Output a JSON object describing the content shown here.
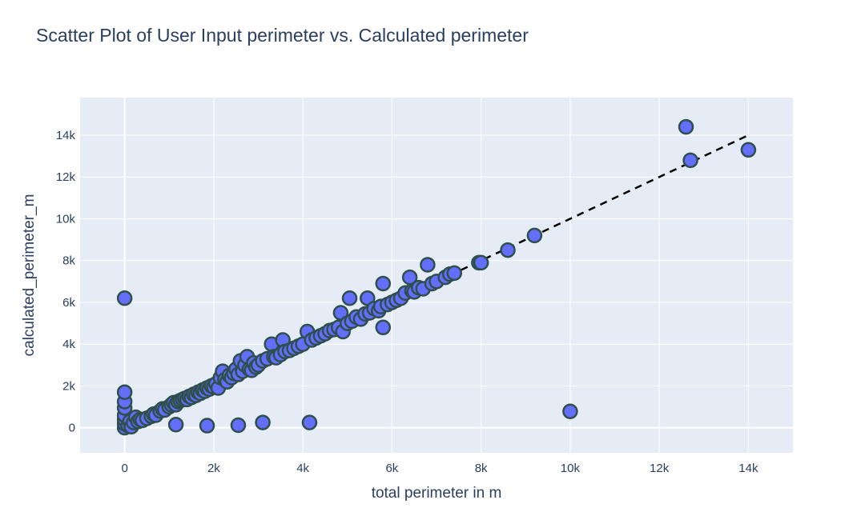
{
  "chart_data": {
    "type": "scatter",
    "title": "Scatter Plot of User Input perimeter vs. Calculated perimeter",
    "xlabel": "total perimeter in m",
    "ylabel": "calculated_perimeter_m",
    "xlim": [
      -1000,
      15000
    ],
    "ylim": [
      -1200,
      15800
    ],
    "x_ticks": [
      {
        "value": 0,
        "label": "0"
      },
      {
        "value": 2000,
        "label": "2k"
      },
      {
        "value": 4000,
        "label": "4k"
      },
      {
        "value": 6000,
        "label": "6k"
      },
      {
        "value": 8000,
        "label": "8k"
      },
      {
        "value": 10000,
        "label": "10k"
      },
      {
        "value": 12000,
        "label": "12k"
      },
      {
        "value": 14000,
        "label": "14k"
      }
    ],
    "y_ticks": [
      {
        "value": 0,
        "label": "0"
      },
      {
        "value": 2000,
        "label": "2k"
      },
      {
        "value": 4000,
        "label": "4k"
      },
      {
        "value": 6000,
        "label": "6k"
      },
      {
        "value": 8000,
        "label": "8k"
      },
      {
        "value": 10000,
        "label": "10k"
      },
      {
        "value": 12000,
        "label": "12k"
      },
      {
        "value": 14000,
        "label": "14k"
      }
    ],
    "grid": true,
    "legend": "none",
    "colors": {
      "plot_bg": "#E5ECF6",
      "grid": "#ffffff",
      "marker_fill": "#636EFA",
      "marker_line": "#2F4F4F",
      "text": "#2a3f5f",
      "reference_line": "#000000"
    },
    "reference_line": {
      "style": "dashed",
      "x": [
        0,
        14000
      ],
      "y": [
        0,
        14000
      ]
    },
    "points": [
      {
        "x": 0,
        "y": 0
      },
      {
        "x": 0,
        "y": 200
      },
      {
        "x": 0,
        "y": 400
      },
      {
        "x": 0,
        "y": 600
      },
      {
        "x": 0,
        "y": 950
      },
      {
        "x": 0,
        "y": 1250
      },
      {
        "x": 0,
        "y": 1700
      },
      {
        "x": 0,
        "y": 6200
      },
      {
        "x": 80,
        "y": 100
      },
      {
        "x": 120,
        "y": 300
      },
      {
        "x": 150,
        "y": 50
      },
      {
        "x": 200,
        "y": 250
      },
      {
        "x": 250,
        "y": 500
      },
      {
        "x": 300,
        "y": 300
      },
      {
        "x": 350,
        "y": 400
      },
      {
        "x": 400,
        "y": 350
      },
      {
        "x": 500,
        "y": 450
      },
      {
        "x": 600,
        "y": 550
      },
      {
        "x": 650,
        "y": 650
      },
      {
        "x": 700,
        "y": 600
      },
      {
        "x": 800,
        "y": 800
      },
      {
        "x": 850,
        "y": 900
      },
      {
        "x": 900,
        "y": 850
      },
      {
        "x": 1000,
        "y": 1000
      },
      {
        "x": 1050,
        "y": 1100
      },
      {
        "x": 1100,
        "y": 1200
      },
      {
        "x": 1150,
        "y": 1100
      },
      {
        "x": 1200,
        "y": 1250
      },
      {
        "x": 1250,
        "y": 1300
      },
      {
        "x": 1300,
        "y": 1350
      },
      {
        "x": 1350,
        "y": 1400
      },
      {
        "x": 1400,
        "y": 1350
      },
      {
        "x": 1450,
        "y": 1500
      },
      {
        "x": 1500,
        "y": 1450
      },
      {
        "x": 1550,
        "y": 1600
      },
      {
        "x": 1600,
        "y": 1550
      },
      {
        "x": 1650,
        "y": 1700
      },
      {
        "x": 1700,
        "y": 1650
      },
      {
        "x": 1750,
        "y": 1800
      },
      {
        "x": 1800,
        "y": 1750
      },
      {
        "x": 1850,
        "y": 1900
      },
      {
        "x": 1900,
        "y": 1850
      },
      {
        "x": 1950,
        "y": 2000
      },
      {
        "x": 2000,
        "y": 1950
      },
      {
        "x": 2050,
        "y": 2100
      },
      {
        "x": 2100,
        "y": 1900
      },
      {
        "x": 2150,
        "y": 2400
      },
      {
        "x": 2200,
        "y": 2700
      },
      {
        "x": 2250,
        "y": 2300
      },
      {
        "x": 2300,
        "y": 2200
      },
      {
        "x": 2350,
        "y": 2500
      },
      {
        "x": 2400,
        "y": 2400
      },
      {
        "x": 2450,
        "y": 2600
      },
      {
        "x": 2500,
        "y": 2800
      },
      {
        "x": 2550,
        "y": 2550
      },
      {
        "x": 2600,
        "y": 3200
      },
      {
        "x": 2650,
        "y": 2700
      },
      {
        "x": 2700,
        "y": 3000
      },
      {
        "x": 2750,
        "y": 3400
      },
      {
        "x": 2800,
        "y": 2800
      },
      {
        "x": 2850,
        "y": 2750
      },
      {
        "x": 2900,
        "y": 3100
      },
      {
        "x": 2950,
        "y": 2900
      },
      {
        "x": 3000,
        "y": 3000
      },
      {
        "x": 3100,
        "y": 3200
      },
      {
        "x": 3200,
        "y": 3300
      },
      {
        "x": 3300,
        "y": 4000
      },
      {
        "x": 3350,
        "y": 3400
      },
      {
        "x": 3400,
        "y": 3350
      },
      {
        "x": 3500,
        "y": 3500
      },
      {
        "x": 3550,
        "y": 4200
      },
      {
        "x": 3600,
        "y": 3650
      },
      {
        "x": 3700,
        "y": 3700
      },
      {
        "x": 3800,
        "y": 3800
      },
      {
        "x": 3900,
        "y": 3900
      },
      {
        "x": 4000,
        "y": 4000
      },
      {
        "x": 4100,
        "y": 4600
      },
      {
        "x": 4200,
        "y": 4200
      },
      {
        "x": 4300,
        "y": 4300
      },
      {
        "x": 4400,
        "y": 4400
      },
      {
        "x": 4500,
        "y": 4500
      },
      {
        "x": 4600,
        "y": 4650
      },
      {
        "x": 4700,
        "y": 4700
      },
      {
        "x": 4800,
        "y": 4800
      },
      {
        "x": 4850,
        "y": 5500
      },
      {
        "x": 4900,
        "y": 4600
      },
      {
        "x": 5000,
        "y": 5000
      },
      {
        "x": 5050,
        "y": 6200
      },
      {
        "x": 5100,
        "y": 5100
      },
      {
        "x": 5200,
        "y": 5300
      },
      {
        "x": 5300,
        "y": 5200
      },
      {
        "x": 5400,
        "y": 5450
      },
      {
        "x": 5450,
        "y": 6200
      },
      {
        "x": 5500,
        "y": 5500
      },
      {
        "x": 5600,
        "y": 5700
      },
      {
        "x": 5700,
        "y": 5600
      },
      {
        "x": 5750,
        "y": 5800
      },
      {
        "x": 5800,
        "y": 6900
      },
      {
        "x": 5800,
        "y": 4800
      },
      {
        "x": 5900,
        "y": 5900
      },
      {
        "x": 6000,
        "y": 6000
      },
      {
        "x": 6100,
        "y": 6100
      },
      {
        "x": 6200,
        "y": 6200
      },
      {
        "x": 6300,
        "y": 6450
      },
      {
        "x": 6400,
        "y": 7200
      },
      {
        "x": 6450,
        "y": 6550
      },
      {
        "x": 6500,
        "y": 6500
      },
      {
        "x": 6600,
        "y": 6700
      },
      {
        "x": 6700,
        "y": 6650
      },
      {
        "x": 6800,
        "y": 7800
      },
      {
        "x": 6900,
        "y": 6900
      },
      {
        "x": 7000,
        "y": 7000
      },
      {
        "x": 7200,
        "y": 7200
      },
      {
        "x": 7300,
        "y": 7350
      },
      {
        "x": 7400,
        "y": 7400
      },
      {
        "x": 7950,
        "y": 7900
      },
      {
        "x": 8000,
        "y": 7900
      },
      {
        "x": 8600,
        "y": 8500
      },
      {
        "x": 9200,
        "y": 9200
      },
      {
        "x": 1150,
        "y": 150
      },
      {
        "x": 1850,
        "y": 100
      },
      {
        "x": 2550,
        "y": 120
      },
      {
        "x": 3100,
        "y": 250
      },
      {
        "x": 4150,
        "y": 250
      },
      {
        "x": 10000,
        "y": 780
      },
      {
        "x": 12600,
        "y": 14400
      },
      {
        "x": 12700,
        "y": 12800
      },
      {
        "x": 14000,
        "y": 13300
      }
    ]
  }
}
